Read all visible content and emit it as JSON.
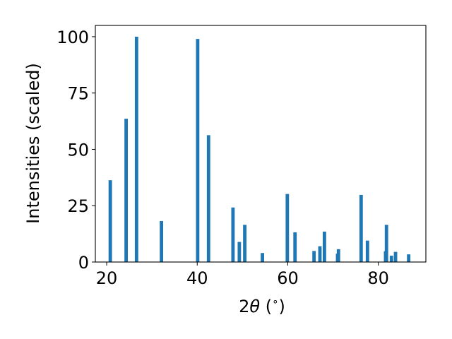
{
  "chart_data": {
    "type": "bar",
    "xlabel_parts": {
      "pre": "2",
      "sym": "θ",
      "post": " (",
      "deg": "∘",
      "close": ")"
    },
    "ylabel": "Intensities (scaled)",
    "xlim": [
      17.5,
      90.5
    ],
    "ylim": [
      0,
      105
    ],
    "xticks": [
      20,
      40,
      60,
      80
    ],
    "yticks": [
      0,
      25,
      50,
      75,
      100
    ],
    "bar_width_deg": 0.75,
    "bar_color": "#1f77b4",
    "grid": false,
    "legend": "none",
    "x": [
      20.8,
      24.3,
      26.6,
      32.1,
      40.1,
      42.5,
      47.9,
      49.3,
      50.5,
      54.4,
      59.9,
      61.6,
      65.8,
      67.1,
      68.1,
      71.0,
      71.2,
      76.2,
      77.6,
      81.6,
      81.8,
      82.9,
      83.8,
      86.7
    ],
    "values": [
      36.3,
      63.6,
      100.0,
      18.2,
      99.0,
      56.3,
      24.2,
      8.9,
      16.5,
      4.0,
      30.2,
      13.2,
      4.9,
      7.0,
      13.5,
      3.7,
      5.7,
      29.8,
      9.5,
      4.8,
      16.5,
      2.8,
      4.5,
      3.4
    ]
  }
}
